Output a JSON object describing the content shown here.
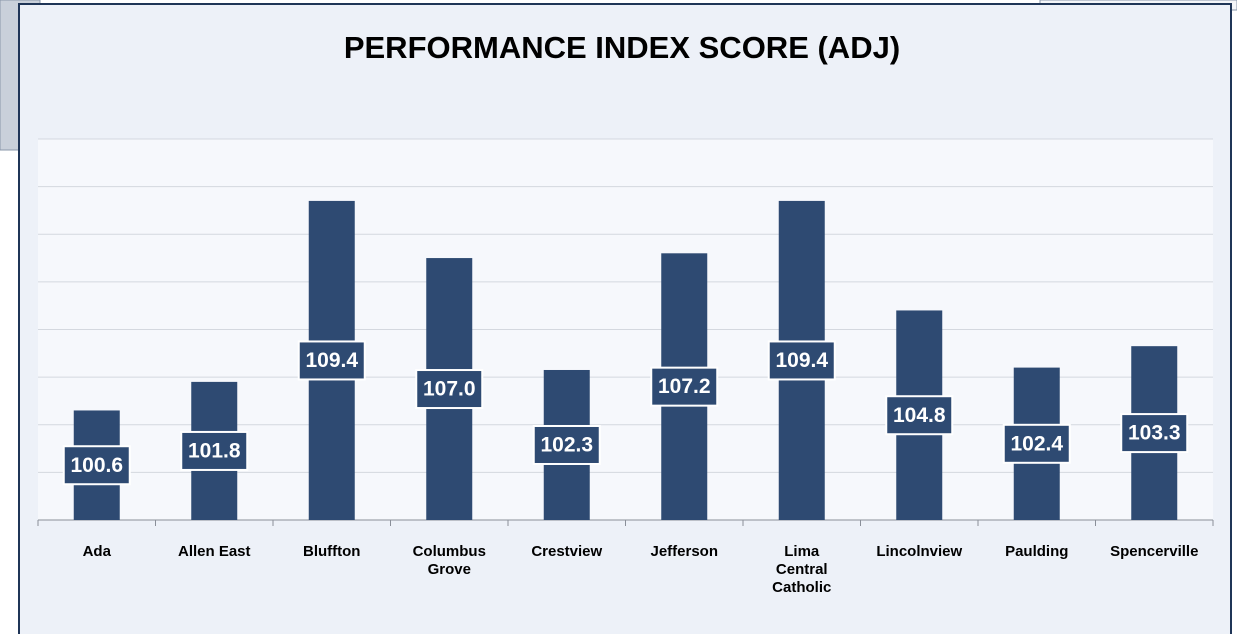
{
  "chart_data": {
    "type": "bar",
    "title": "PERFORMANCE INDEX SCORE (ADJ)",
    "categories": [
      "Ada",
      "Allen East",
      "Bluffton",
      "Columbus Grove",
      "Crestview",
      "Jefferson",
      "Lima Central Catholic",
      "Lincolnview",
      "Paulding",
      "Spencerville"
    ],
    "values": [
      100.6,
      101.8,
      109.4,
      107.0,
      102.3,
      107.2,
      109.4,
      104.8,
      102.4,
      103.3
    ],
    "value_labels": [
      "100.6",
      "101.8",
      "109.4",
      "107.0",
      "102.3",
      "107.2",
      "109.4",
      "104.8",
      "102.4",
      "103.3"
    ],
    "color": "#2e4a72",
    "ylim": [
      96,
      112
    ],
    "yticks": [
      96,
      98,
      100,
      102,
      104,
      106,
      108,
      110,
      112
    ],
    "grid": true
  }
}
